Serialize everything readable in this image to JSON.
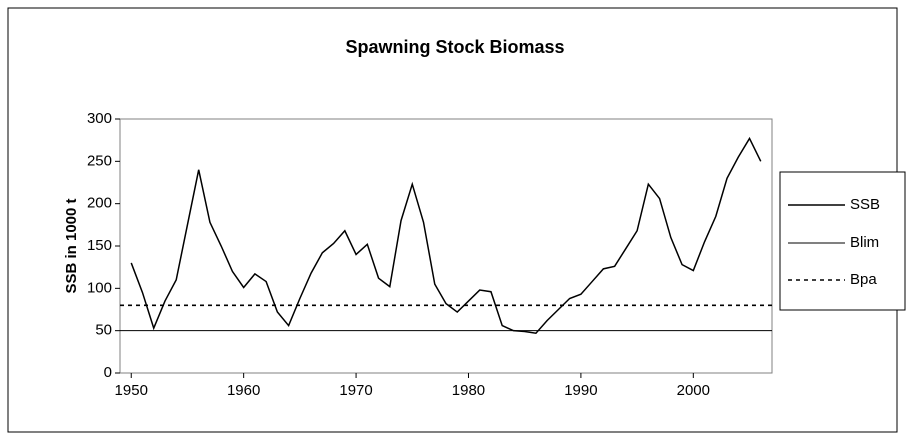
{
  "chart_data": {
    "type": "line",
    "title": "Spawning Stock Biomass",
    "y_label": "SSB in 1000 t",
    "x": [
      1950,
      1951,
      1952,
      1953,
      1954,
      1955,
      1956,
      1957,
      1958,
      1959,
      1960,
      1961,
      1962,
      1963,
      1964,
      1965,
      1966,
      1967,
      1968,
      1969,
      1970,
      1971,
      1972,
      1973,
      1974,
      1975,
      1976,
      1977,
      1978,
      1979,
      1980,
      1981,
      1982,
      1983,
      1984,
      1985,
      1986,
      1987,
      1988,
      1989,
      1990,
      1991,
      1992,
      1993,
      1994,
      1995,
      1996,
      1997,
      1998,
      1999,
      2000,
      2001,
      2002,
      2003,
      2004,
      2005,
      2006
    ],
    "series": [
      {
        "name": "SSB",
        "color": "#000000",
        "values": [
          130,
          95,
          53,
          85,
          110,
          175,
          240,
          178,
          150,
          120,
          101,
          117,
          108,
          72,
          56,
          88,
          118,
          142,
          153,
          168,
          140,
          152,
          112,
          102,
          180,
          223,
          178,
          105,
          82,
          72,
          85,
          98,
          96,
          56,
          50,
          49,
          47,
          62,
          75,
          88,
          93,
          108,
          123,
          126,
          147,
          168,
          223,
          206,
          160,
          128,
          121,
          155,
          185,
          230,
          255,
          277,
          250
        ]
      }
    ],
    "reference_lines": [
      {
        "name": "Blim",
        "value": 50,
        "style": "solid",
        "color": "#000000"
      },
      {
        "name": "Bpa",
        "value": 80,
        "style": "dotted",
        "color": "#000000"
      }
    ],
    "xlim": [
      1949,
      2007
    ],
    "xticks": [
      1950,
      1960,
      1970,
      1980,
      1990,
      2000
    ],
    "ylim": [
      0,
      300
    ],
    "yticks": [
      0,
      50,
      100,
      150,
      200,
      250,
      300
    ]
  }
}
